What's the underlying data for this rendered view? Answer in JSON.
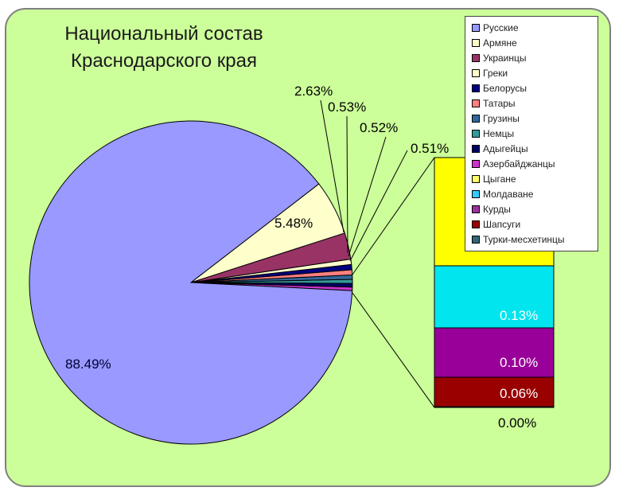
{
  "title_lines": [
    "Национальный состав",
    "Краснодарского края"
  ],
  "legend": [
    {
      "name": "Русские",
      "color": "#9999ff"
    },
    {
      "name": "Армяне",
      "color": "#ffffcc"
    },
    {
      "name": "Украинцы",
      "color": "#993366"
    },
    {
      "name": "Греки",
      "color": "#ffffcc"
    },
    {
      "name": "Белорусы",
      "color": "#000080"
    },
    {
      "name": "Татары",
      "color": "#ff8080"
    },
    {
      "name": "Грузины",
      "color": "#336699"
    },
    {
      "name": "Немцы",
      "color": "#339999"
    },
    {
      "name": "Адыгейцы",
      "color": "#000066"
    },
    {
      "name": "Азербайджанцы",
      "color": "#cc33cc"
    },
    {
      "name": "Цыгане",
      "color": "#ffff66"
    },
    {
      "name": "Молдаване",
      "color": "#33ccff"
    },
    {
      "name": "Курды",
      "color": "#993399"
    },
    {
      "name": "Шапсуги",
      "color": "#990000"
    },
    {
      "name": "Турки-месхетинцы",
      "color": "#336677"
    }
  ],
  "chart_data": {
    "type": "pie",
    "slices": [
      {
        "value": 88.49,
        "label": "88.49%",
        "color": "#9999ff"
      },
      {
        "value": 5.48,
        "label": "5.48%",
        "color": "#ffffcc"
      },
      {
        "value": 2.63,
        "label": "2.63%",
        "color": "#993366"
      },
      {
        "value": 0.53,
        "label": "0.53%",
        "color": "#ffffcc"
      },
      {
        "value": 0.52,
        "label": "0.52%",
        "color": "#000080"
      },
      {
        "value": 0.51,
        "label": "0.51%",
        "color": "#ff8080"
      },
      {
        "value": 0.44,
        "label": "",
        "color": "#336699"
      },
      {
        "value": 0.4,
        "label": "",
        "color": "#339999"
      },
      {
        "value": 0.36,
        "label": "",
        "color": "#000066"
      },
      {
        "value": 0.35,
        "label": "",
        "color": "#cc33cc"
      }
    ],
    "bar_of_pie": [
      {
        "value": 0.29,
        "label": "",
        "color": "#ffff00"
      },
      {
        "value": 0.13,
        "label": "0.13%",
        "color": "#00e5ee"
      },
      {
        "value": 0.1,
        "label": "0.10%",
        "color": "#990099"
      },
      {
        "value": 0.06,
        "label": "0.06%",
        "color": "#990000"
      },
      {
        "value": 0.0,
        "label": "0.00%",
        "color": "#336677"
      }
    ]
  }
}
